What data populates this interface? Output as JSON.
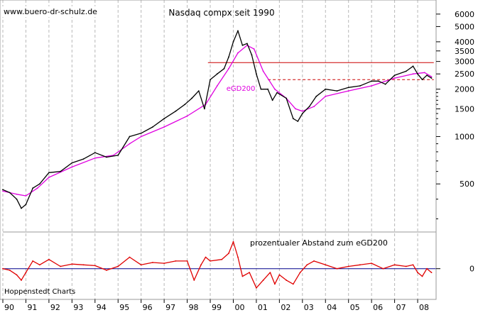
{
  "chart_data": [
    {
      "type": "line",
      "title": "Nasdaq compx seit 1990",
      "y_scale": "log",
      "ylim": [
        250,
        7000
      ],
      "y_ticks": [
        500,
        1000,
        1500,
        2000,
        2500,
        3000,
        3500,
        4000,
        5000,
        6000
      ],
      "x_ticks": [
        "90",
        "91",
        "92",
        "93",
        "94",
        "95",
        "96",
        "97",
        "98",
        "99",
        "00",
        "01",
        "02",
        "03",
        "04",
        "05",
        "06",
        "07",
        "08"
      ],
      "grid": true,
      "series": [
        {
          "name": "Nasdaq compx",
          "color": "#000000",
          "x": [
            1990.0,
            1990.3,
            1990.6,
            1990.8,
            1991.0,
            1991.3,
            1991.6,
            1992.0,
            1992.5,
            1993.0,
            1993.5,
            1994.0,
            1994.5,
            1995.0,
            1995.5,
            1996.0,
            1996.5,
            1997.0,
            1997.5,
            1997.9,
            1998.2,
            1998.5,
            1998.75,
            1999.0,
            1999.3,
            1999.6,
            1999.8,
            2000.0,
            2000.2,
            2000.4,
            2000.6,
            2000.8,
            2001.0,
            2001.2,
            2001.5,
            2001.7,
            2001.9,
            2002.3,
            2002.6,
            2002.8,
            2003.0,
            2003.3,
            2003.6,
            2004.0,
            2004.5,
            2005.0,
            2005.5,
            2006.0,
            2006.3,
            2006.6,
            2007.0,
            2007.5,
            2007.8,
            2008.0,
            2008.2,
            2008.4,
            2008.6
          ],
          "values": [
            460,
            440,
            400,
            350,
            370,
            470,
            500,
            590,
            600,
            680,
            720,
            790,
            740,
            760,
            1000,
            1050,
            1150,
            1300,
            1450,
            1600,
            1750,
            1950,
            1500,
            2300,
            2500,
            2700,
            3200,
            4000,
            4700,
            3800,
            3900,
            3300,
            2500,
            2000,
            2000,
            1700,
            1900,
            1750,
            1300,
            1250,
            1400,
            1550,
            1800,
            2000,
            1950,
            2050,
            2100,
            2250,
            2250,
            2150,
            2450,
            2600,
            2800,
            2500,
            2300,
            2450,
            2350
          ]
        },
        {
          "name": "eGD200",
          "color": "#e000e0",
          "x": [
            1990.0,
            1990.6,
            1991.0,
            1991.5,
            1992.0,
            1993.0,
            1994.0,
            1994.8,
            1995.5,
            1996.0,
            1997.0,
            1998.0,
            1998.8,
            1999.3,
            1999.8,
            2000.2,
            2000.6,
            2000.9,
            2001.3,
            2001.8,
            2002.3,
            2002.7,
            2003.0,
            2003.5,
            2004.0,
            2005.0,
            2006.0,
            2007.0,
            2007.8,
            2008.3,
            2008.6
          ],
          "values": [
            450,
            430,
            420,
            470,
            550,
            640,
            730,
            760,
            900,
            1000,
            1150,
            1350,
            1600,
            2100,
            2700,
            3400,
            3800,
            3600,
            2600,
            2000,
            1750,
            1500,
            1450,
            1550,
            1800,
            1950,
            2100,
            2350,
            2500,
            2550,
            2400
          ]
        }
      ],
      "reference_lines": [
        {
          "y": 2950,
          "x_start": 1998.9,
          "x_end": 2008.7,
          "style": "solid",
          "color": "#cc0000"
        },
        {
          "y": 2300,
          "x_start": 2001.5,
          "x_end": 2008.7,
          "style": "dashed",
          "color": "#cc0000"
        }
      ],
      "annotations": [
        {
          "text": "eGD200",
          "x": 1999.7,
          "y": 1950,
          "color": "#e000e0"
        }
      ]
    },
    {
      "type": "line",
      "title": "prozentualer Abstand zum eGD200",
      "ylim": [
        -40,
        45
      ],
      "y_ticks": [
        0
      ],
      "x_ticks": [
        "90",
        "91",
        "92",
        "93",
        "94",
        "95",
        "96",
        "97",
        "98",
        "99",
        "00",
        "01",
        "02",
        "03",
        "04",
        "05",
        "06",
        "07",
        "08"
      ],
      "grid": true,
      "series": [
        {
          "name": "prozentualer Abstand zum eGD200",
          "color": "#e00000",
          "x": [
            1990.0,
            1990.3,
            1990.6,
            1990.8,
            1991.0,
            1991.3,
            1991.6,
            1992.0,
            1992.5,
            1993.0,
            1993.5,
            1994.0,
            1994.5,
            1995.0,
            1995.5,
            1996.0,
            1996.5,
            1997.0,
            1997.5,
            1998.0,
            1998.3,
            1998.6,
            1998.8,
            1999.0,
            1999.5,
            1999.8,
            2000.0,
            2000.2,
            2000.4,
            2000.7,
            2001.0,
            2001.3,
            2001.6,
            2001.8,
            2002.0,
            2002.3,
            2002.6,
            2002.9,
            2003.2,
            2003.5,
            2004.0,
            2004.5,
            2005.0,
            2005.5,
            2006.0,
            2006.5,
            2007.0,
            2007.5,
            2007.8,
            2008.0,
            2008.2,
            2008.4,
            2008.6
          ],
          "values": [
            0,
            -2,
            -8,
            -15,
            -5,
            10,
            5,
            12,
            3,
            6,
            5,
            4,
            -2,
            3,
            15,
            5,
            8,
            7,
            10,
            10,
            -15,
            5,
            15,
            10,
            12,
            20,
            35,
            15,
            -10,
            -5,
            -25,
            -15,
            -5,
            -20,
            -8,
            -15,
            -20,
            -5,
            5,
            10,
            5,
            0,
            3,
            5,
            7,
            0,
            5,
            3,
            5,
            -5,
            -10,
            0,
            -5
          ]
        }
      ],
      "zero_line": 0
    }
  ],
  "footer": {
    "source": "Hoppenstedt Charts",
    "watermark": "www.buero-dr-schulz.de"
  }
}
